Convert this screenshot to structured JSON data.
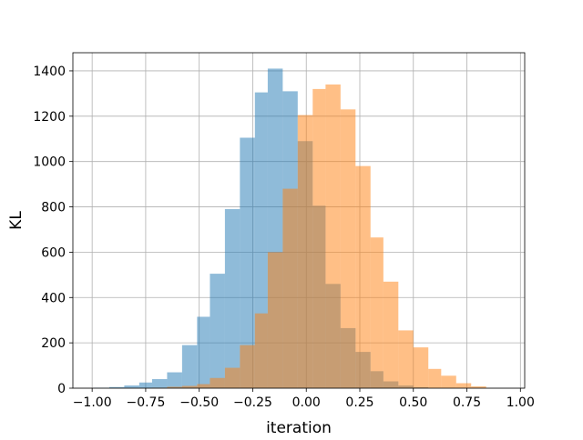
{
  "chart_data": {
    "type": "bar",
    "xlabel": "iteration",
    "ylabel": "KL",
    "xlim": [
      -1.09,
      1.02
    ],
    "ylim": [
      0,
      1480
    ],
    "xticks": [
      -1.0,
      -0.75,
      -0.5,
      -0.25,
      0.0,
      0.25,
      0.5,
      0.75,
      1.0
    ],
    "xtick_labels": [
      "−1.00",
      "−0.75",
      "−0.50",
      "−0.25",
      "0.00",
      "0.25",
      "0.50",
      "0.75",
      "1.00"
    ],
    "yticks": [
      0,
      200,
      400,
      600,
      800,
      1000,
      1200,
      1400
    ],
    "ytick_labels": [
      "0",
      "200",
      "400",
      "600",
      "800",
      "1000",
      "1200",
      "1400"
    ],
    "grid": true,
    "series": [
      {
        "color": "#1f77b4",
        "opacity": 0.5,
        "bins": [
          {
            "x0": -0.99,
            "x1": -0.92,
            "value": 2
          },
          {
            "x0": -0.92,
            "x1": -0.85,
            "value": 5
          },
          {
            "x0": -0.85,
            "x1": -0.78,
            "value": 12
          },
          {
            "x0": -0.78,
            "x1": -0.72,
            "value": 25
          },
          {
            "x0": -0.72,
            "x1": -0.65,
            "value": 40
          },
          {
            "x0": -0.65,
            "x1": -0.58,
            "value": 70
          },
          {
            "x0": -0.58,
            "x1": -0.51,
            "value": 190
          },
          {
            "x0": -0.51,
            "x1": -0.45,
            "value": 315
          },
          {
            "x0": -0.45,
            "x1": -0.38,
            "value": 505
          },
          {
            "x0": -0.38,
            "x1": -0.31,
            "value": 790
          },
          {
            "x0": -0.31,
            "x1": -0.24,
            "value": 1105
          },
          {
            "x0": -0.24,
            "x1": -0.18,
            "value": 1305
          },
          {
            "x0": -0.18,
            "x1": -0.11,
            "value": 1410
          },
          {
            "x0": -0.11,
            "x1": -0.04,
            "value": 1310
          },
          {
            "x0": -0.04,
            "x1": 0.03,
            "value": 1090
          },
          {
            "x0": 0.03,
            "x1": 0.09,
            "value": 805
          },
          {
            "x0": 0.09,
            "x1": 0.16,
            "value": 460
          },
          {
            "x0": 0.16,
            "x1": 0.23,
            "value": 265
          },
          {
            "x0": 0.23,
            "x1": 0.3,
            "value": 160
          },
          {
            "x0": 0.3,
            "x1": 0.36,
            "value": 75
          },
          {
            "x0": 0.36,
            "x1": 0.43,
            "value": 30
          },
          {
            "x0": 0.43,
            "x1": 0.5,
            "value": 12
          },
          {
            "x0": 0.5,
            "x1": 0.57,
            "value": 4
          }
        ]
      },
      {
        "color": "#ff7f0e",
        "opacity": 0.5,
        "bins": [
          {
            "x0": -0.72,
            "x1": -0.65,
            "value": 2
          },
          {
            "x0": -0.65,
            "x1": -0.58,
            "value": 6
          },
          {
            "x0": -0.58,
            "x1": -0.51,
            "value": 10
          },
          {
            "x0": -0.51,
            "x1": -0.45,
            "value": 18
          },
          {
            "x0": -0.45,
            "x1": -0.38,
            "value": 45
          },
          {
            "x0": -0.38,
            "x1": -0.31,
            "value": 90
          },
          {
            "x0": -0.31,
            "x1": -0.24,
            "value": 190
          },
          {
            "x0": -0.24,
            "x1": -0.18,
            "value": 330
          },
          {
            "x0": -0.18,
            "x1": -0.11,
            "value": 600
          },
          {
            "x0": -0.11,
            "x1": -0.04,
            "value": 880
          },
          {
            "x0": -0.04,
            "x1": 0.03,
            "value": 1205
          },
          {
            "x0": 0.03,
            "x1": 0.09,
            "value": 1320
          },
          {
            "x0": 0.09,
            "x1": 0.16,
            "value": 1340
          },
          {
            "x0": 0.16,
            "x1": 0.23,
            "value": 1230
          },
          {
            "x0": 0.23,
            "x1": 0.3,
            "value": 980
          },
          {
            "x0": 0.3,
            "x1": 0.36,
            "value": 665
          },
          {
            "x0": 0.36,
            "x1": 0.43,
            "value": 470
          },
          {
            "x0": 0.43,
            "x1": 0.5,
            "value": 255
          },
          {
            "x0": 0.5,
            "x1": 0.57,
            "value": 180
          },
          {
            "x0": 0.57,
            "x1": 0.63,
            "value": 85
          },
          {
            "x0": 0.63,
            "x1": 0.7,
            "value": 55
          },
          {
            "x0": 0.7,
            "x1": 0.77,
            "value": 22
          },
          {
            "x0": 0.77,
            "x1": 0.84,
            "value": 8
          }
        ]
      }
    ]
  }
}
